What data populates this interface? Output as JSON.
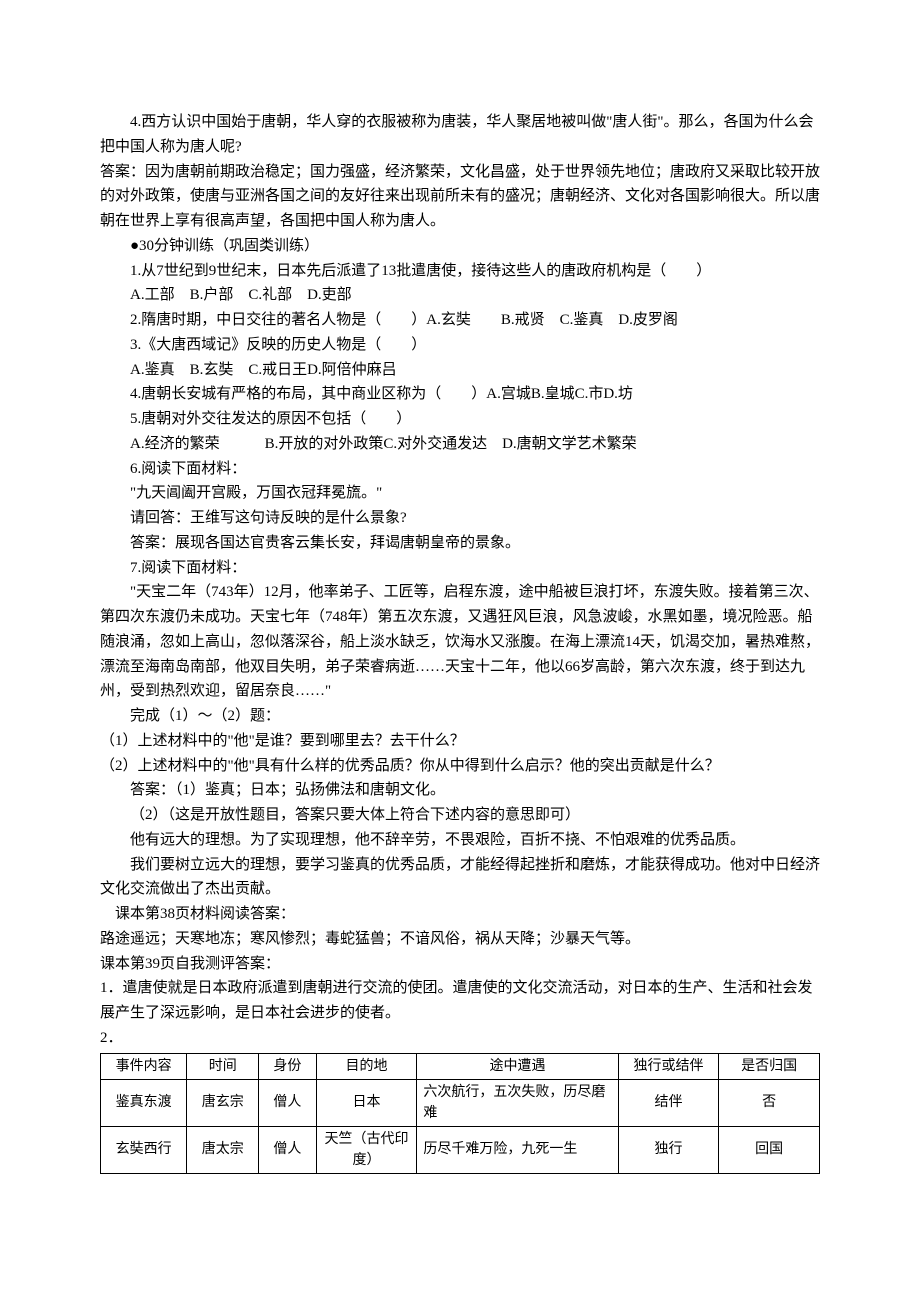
{
  "p1": "4.西方认识中国始于唐朝，华人穿的衣服被称为唐装，华人聚居地被叫做\"唐人街\"。那么，各国为什么会把中国人称为唐人呢?",
  "p2": "答案：因为唐朝前期政治稳定；国力强盛，经济繁荣，文化昌盛，处于世界领先地位；唐政府又采取比较开放的对外政策，使唐与亚洲各国之间的友好往来出现前所未有的盛况；唐朝经济、文化对各国影响很大。所以唐朝在世界上享有很高声望，各国把中国人称为唐人。",
  "p3": "●30分钟训练（巩固类训练）",
  "p4": "1.从7世纪到9世纪末，日本先后派遣了13批遣唐使，接待这些人的唐政府机构是（　　）",
  "p5": "A.工部　B.户部　C.礼部　D.吏部",
  "p6": "2.隋唐时期，中日交往的著名人物是（　　）A.玄奘　　B.戒贤　C.鉴真　D.皮罗阁",
  "p7": "3.《大唐西域记》反映的历史人物是（　　）",
  "p8": "A.鉴真　B.玄奘　C.戒日王D.阿倍仲麻吕",
  "p9": "4.唐朝长安城有严格的布局，其中商业区称为（　　）A.宫城B.皇城C.市D.坊",
  "p10": "5.唐朝对外交往发达的原因不包括（　　）",
  "p11": "A.经济的繁荣　　　B.开放的对外政策C.对外交通发达　D.唐朝文学艺术繁荣",
  "p12": "6.阅读下面材料：",
  "p13": "\"九天阊阖开宫殿，万国衣冠拜冕旒。\"",
  "p14": "请回答：王维写这句诗反映的是什么景象?",
  "p15": "答案：展现各国达官贵客云集长安，拜谒唐朝皇帝的景象。",
  "p16": "7.阅读下面材料：",
  "p17": "\"天宝二年（743年）12月，他率弟子、工匠等，启程东渡，途中船被巨浪打坏，东渡失败。接着第三次、第四次东渡仍未成功。天宝七年（748年）第五次东渡，又遇狂风巨浪，风急波峻，水黑如墨，境况险恶。船随浪涌，忽如上高山，忽似落深谷，船上淡水缺乏，饮海水又涨腹。在海上漂流14天，饥渴交加，暑热难熬，漂流至海南岛南部，他双目失明，弟子荣睿病逝……天宝十二年，他以66岁高龄，第六次东渡，终于到达九州，受到热烈欢迎，留居奈良……\"",
  "p18": "完成（1）～（2）题：",
  "p19": "（1）上述材料中的\"他\"是谁？要到哪里去？去干什么？",
  "p20": "（2）上述材料中的\"他\"具有什么样的优秀品质？你从中得到什么启示？他的突出贡献是什么？",
  "p21": "答案：（1）鉴真；日本；弘扬佛法和唐朝文化。",
  "p22": "（2）（这是开放性题目，答案只要大体上符合下述内容的意思即可）",
  "p23": "他有远大的理想。为了实现理想，他不辞辛劳，不畏艰险，百折不挠、不怕艰难的优秀品质。",
  "p24": "我们要树立远大的理想，要学习鉴真的优秀品质，才能经得起挫折和磨炼，才能获得成功。他对中日经济文化交流做出了杰出贡献。",
  "p25": "课本第38页材料阅读答案：",
  "p26": "路途遥远；天寒地冻；寒风惨烈；毒蛇猛兽；不谙风俗，祸从天降；沙暴天气等。",
  "p27": "课本第39页自我测评答案：",
  "p28": "1．遣唐使就是日本政府派遣到唐朝进行交流的使团。遣唐使的文化交流活动，对日本的生产、生活和社会发展产生了深远影响，是日本社会进步的使者。",
  "p29": "2．",
  "table": {
    "headers": [
      "事件内容",
      "时间",
      "身份",
      "目的地",
      "途中遭遇",
      "独行或结伴",
      "是否归国"
    ],
    "rows": [
      {
        "event": "鉴真东渡",
        "time": "唐玄宗",
        "role": "僧人",
        "dest": "日本",
        "experience": "六次航行，五次失败，历尽磨难",
        "travel": "结伴",
        "return": "否"
      },
      {
        "event": "玄奘西行",
        "time": "唐太宗",
        "role": "僧人",
        "dest": "天竺（古代印度）",
        "experience": "历尽千难万险，九死一生",
        "travel": "独行",
        "return": "回国"
      }
    ]
  }
}
